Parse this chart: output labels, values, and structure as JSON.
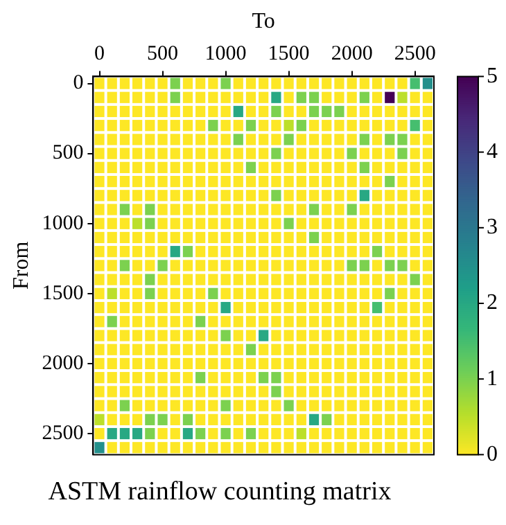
{
  "chart_data": {
    "type": "heatmap",
    "title": "ASTM rainflow counting matrix",
    "xlabel": "To",
    "ylabel": "From",
    "xlim": [
      -50,
      2650
    ],
    "ylim": [
      2650,
      -50
    ],
    "xticks": [
      0,
      500,
      1000,
      1500,
      2000,
      2500
    ],
    "yticks": [
      0,
      500,
      1000,
      1500,
      2000,
      2500
    ],
    "clim": [
      0,
      5
    ],
    "cticks": [
      0,
      1,
      2,
      3,
      4,
      5
    ],
    "cells": [
      [
        0,
        0,
        0,
        0,
        0,
        0,
        1,
        0,
        0,
        0,
        1,
        0,
        0,
        0,
        0,
        0,
        0,
        0,
        0,
        0,
        0,
        0,
        0,
        0,
        0,
        1.5,
        2.5
      ],
      [
        0,
        0,
        0,
        0,
        0,
        0,
        1,
        0,
        0,
        0,
        0,
        0,
        0,
        0,
        2,
        0,
        1,
        1,
        0,
        0,
        0,
        1,
        0,
        5,
        0.5,
        0,
        0
      ],
      [
        0,
        0,
        0,
        0,
        0,
        0,
        0,
        0,
        0,
        0,
        0,
        2,
        0,
        0,
        1,
        0,
        0,
        1,
        1,
        1,
        0,
        0,
        0,
        0,
        0,
        0,
        0
      ],
      [
        0,
        0,
        0,
        0,
        0,
        0,
        0,
        0,
        0,
        1,
        0,
        0,
        1,
        0,
        0,
        0.5,
        1,
        0,
        0,
        0,
        0,
        0,
        0,
        0,
        0,
        1.5,
        0
      ],
      [
        0,
        0,
        0,
        0,
        0,
        0,
        0,
        0,
        0,
        0,
        0,
        1,
        0,
        0,
        0,
        1,
        0,
        0,
        0,
        0,
        0,
        1,
        0,
        1,
        1,
        0,
        0
      ],
      [
        0,
        0,
        0,
        0,
        0,
        0,
        0,
        0,
        0,
        0,
        0,
        0,
        0,
        0,
        1,
        0,
        0,
        0,
        0,
        0,
        1,
        0,
        0,
        0,
        1,
        0,
        0
      ],
      [
        0,
        0,
        0,
        0,
        0,
        0,
        0,
        0,
        0,
        0,
        0,
        0,
        1,
        0,
        0,
        0,
        0,
        0,
        0,
        0,
        0,
        1,
        0,
        0,
        0,
        0,
        0
      ],
      [
        0,
        0,
        0,
        0,
        0,
        0,
        0,
        0,
        0,
        0,
        0,
        0,
        0,
        0,
        0,
        0,
        0,
        0,
        0,
        0,
        0,
        0,
        0,
        1,
        0,
        0,
        0
      ],
      [
        0,
        0,
        0,
        0,
        0,
        0,
        0,
        0,
        0,
        0,
        0,
        0,
        0,
        0,
        1,
        0,
        0,
        0,
        0,
        0,
        0,
        2,
        0,
        0,
        0,
        0,
        0
      ],
      [
        0,
        0,
        1,
        0,
        1,
        0,
        0,
        0,
        0,
        0,
        0,
        0,
        0,
        0,
        0,
        0,
        0,
        1,
        0,
        0,
        1,
        0,
        0,
        0,
        0,
        0,
        0
      ],
      [
        0,
        0,
        0,
        0.5,
        1,
        0,
        0,
        0,
        0,
        0,
        0,
        0,
        0,
        0,
        0,
        1,
        0,
        0,
        0,
        0,
        0,
        0,
        0,
        0,
        0,
        0,
        0
      ],
      [
        0,
        0,
        0,
        0,
        0,
        0,
        0,
        0,
        0,
        0,
        0,
        0,
        0,
        0,
        0,
        0,
        0,
        1,
        0,
        0,
        0,
        0,
        0,
        0,
        0,
        0,
        0
      ],
      [
        0,
        0,
        0,
        0,
        0,
        0,
        2,
        1,
        0,
        0,
        0,
        0,
        0,
        0,
        0,
        0,
        0,
        0,
        0,
        0,
        0,
        0,
        1,
        0,
        0,
        0,
        0
      ],
      [
        0,
        0,
        1,
        0,
        0,
        1,
        0,
        0,
        0,
        0,
        0,
        0,
        0,
        0,
        0,
        0,
        0,
        0,
        0,
        0,
        1,
        1,
        0,
        1,
        1,
        0,
        0
      ],
      [
        0,
        0,
        0,
        0,
        1,
        0,
        0,
        0,
        0,
        0,
        0,
        0,
        0,
        0,
        0,
        0,
        0,
        0,
        0,
        0,
        0,
        0,
        0,
        0,
        0,
        1,
        0
      ],
      [
        0,
        0.5,
        0,
        0,
        1,
        0,
        0,
        0,
        0,
        1,
        0,
        0,
        0,
        0,
        0,
        0,
        0,
        0,
        0,
        0,
        0,
        0,
        0,
        1,
        0,
        0,
        0
      ],
      [
        0,
        0,
        0,
        0,
        0,
        0,
        0,
        0,
        0,
        0,
        2,
        0,
        0,
        0,
        0,
        0,
        0,
        0,
        0,
        0,
        0,
        0,
        1.5,
        0,
        0,
        0,
        0
      ],
      [
        0,
        1,
        0,
        0,
        0,
        0,
        0,
        0,
        1,
        0,
        0,
        0,
        0,
        0,
        0,
        0,
        0,
        0,
        0,
        0,
        0,
        0,
        0,
        0,
        0,
        0,
        0
      ],
      [
        0,
        0,
        0,
        0,
        0,
        0,
        0,
        0,
        0,
        0,
        1,
        0,
        0,
        2,
        0,
        0,
        0,
        0,
        0,
        0,
        0,
        0,
        0,
        0,
        0,
        0,
        0
      ],
      [
        0,
        0,
        0,
        0,
        0,
        0,
        0,
        0,
        0,
        0,
        0,
        0,
        1,
        0,
        0,
        0,
        0,
        0,
        0,
        0,
        0,
        0,
        0,
        0,
        0,
        0,
        0
      ],
      [
        0,
        0,
        0,
        0,
        0,
        0,
        0,
        0,
        0,
        0,
        0,
        0,
        0,
        0,
        0,
        0,
        0,
        0,
        0,
        0,
        0,
        0,
        0,
        0,
        0,
        0,
        0
      ],
      [
        0,
        0,
        0,
        0,
        0,
        0,
        0,
        0,
        1,
        0,
        0,
        0,
        0,
        1,
        1,
        0,
        0,
        0,
        0,
        0,
        0,
        0,
        0,
        0,
        0,
        0,
        0
      ],
      [
        0,
        0,
        0,
        0,
        0,
        0,
        0,
        0,
        0,
        0,
        0,
        0,
        0,
        0,
        1,
        0,
        0,
        0,
        0,
        0,
        0,
        0,
        0,
        0,
        0,
        0,
        0
      ],
      [
        0,
        0,
        1,
        0,
        0,
        0,
        0,
        0,
        0,
        0,
        1,
        0,
        0,
        0,
        0,
        1,
        0,
        0,
        0,
        0,
        0,
        0,
        0,
        0,
        0,
        0,
        0
      ],
      [
        0.5,
        0,
        0,
        0,
        1,
        1,
        0,
        1,
        0,
        0,
        0,
        0,
        0,
        0,
        0,
        0,
        0,
        2,
        1,
        0,
        0,
        0,
        0,
        0,
        0,
        0,
        0
      ],
      [
        0,
        2,
        2,
        2,
        1,
        0,
        0,
        2,
        1,
        0,
        1,
        0,
        1,
        0,
        0,
        0,
        0.5,
        0,
        0,
        0,
        0,
        0,
        0,
        0,
        0,
        0,
        0
      ],
      [
        2.5,
        0,
        0,
        0,
        0,
        0,
        0,
        0,
        0,
        0,
        0,
        0,
        0,
        0,
        0,
        0,
        0,
        0,
        0,
        0,
        0,
        0,
        0,
        0,
        0,
        0,
        0
      ]
    ]
  }
}
